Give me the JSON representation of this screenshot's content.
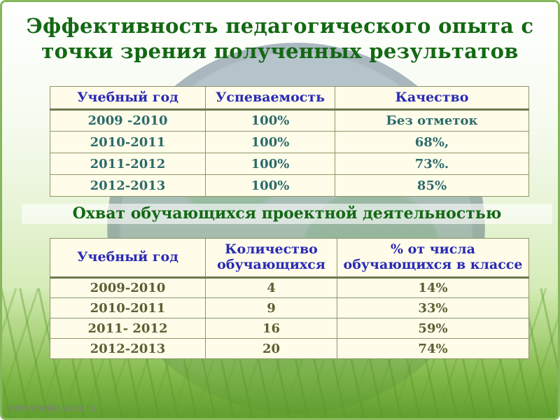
{
  "slide": {
    "title_line1": "Эффективность педагогического опыта с",
    "title_line2": "точки зрения полученных результатов",
    "subtitle": "Охват обучающихся проектной деятельностью",
    "watermark": "elenaranko.ucoz.ru"
  },
  "colors": {
    "title_green": "#136813",
    "header_blue": "#2a2ab5",
    "table1_text": "#2d6a6a",
    "table2_text": "#5c5f33",
    "table_background": "#fffdea",
    "border_green": "#86b75b",
    "grass_green": "#5c9b2a"
  },
  "table1": {
    "headers": [
      "Учебный год",
      "Успеваемость",
      "Качество"
    ],
    "rows": [
      [
        "2009 -2010",
        "100%",
        "Без отметок"
      ],
      [
        "2010-2011",
        "100%",
        "68%,"
      ],
      [
        "2011-2012",
        "100%",
        "73%."
      ],
      [
        "2012-2013",
        "100%",
        "85%"
      ]
    ]
  },
  "table2": {
    "headers": [
      "Учебный год",
      "Количество обучающихся",
      "% от числа обучающихся в классе"
    ],
    "rows": [
      [
        "2009-2010",
        "4",
        "14%"
      ],
      [
        "2010-2011",
        "9",
        "33%"
      ],
      [
        "2011- 2012",
        "16",
        "59%"
      ],
      [
        "2012-2013",
        "20",
        "74%"
      ]
    ]
  }
}
